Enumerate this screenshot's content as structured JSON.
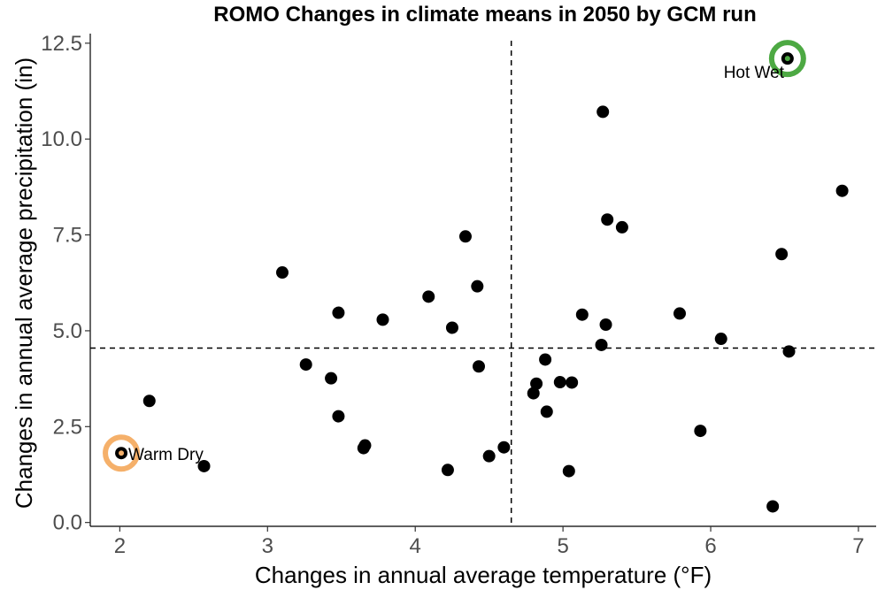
{
  "chart_data": {
    "type": "scatter",
    "title": "ROMO Changes in climate means in 2050 by GCM run",
    "xlabel": "Changes in annual average temperature (°F)",
    "ylabel": "Changes in annual average precipitation (in)",
    "xlim": [
      1.8,
      7.12
    ],
    "ylim": [
      -0.1,
      12.75
    ],
    "x_ticks": [
      2,
      3,
      4,
      5,
      6,
      7
    ],
    "x_tick_labels": [
      "2",
      "3",
      "4",
      "5",
      "6",
      "7"
    ],
    "y_ticks": [
      0,
      2.5,
      5,
      7.5,
      10,
      12.5
    ],
    "y_tick_labels": [
      "0.0",
      "2.5",
      "5.0",
      "7.5",
      "10.0",
      "12.5"
    ],
    "grid": false,
    "reference_lines": {
      "vertical_x": 4.65,
      "horizontal_y": 4.55
    },
    "points": [
      {
        "x": 2.01,
        "y": 1.81
      },
      {
        "x": 2.2,
        "y": 3.17
      },
      {
        "x": 2.57,
        "y": 1.47
      },
      {
        "x": 3.1,
        "y": 6.52
      },
      {
        "x": 3.26,
        "y": 4.12
      },
      {
        "x": 3.43,
        "y": 3.76
      },
      {
        "x": 3.48,
        "y": 5.47
      },
      {
        "x": 3.48,
        "y": 2.77
      },
      {
        "x": 3.65,
        "y": 1.94
      },
      {
        "x": 3.66,
        "y": 2.01
      },
      {
        "x": 3.78,
        "y": 5.29
      },
      {
        "x": 4.09,
        "y": 5.89
      },
      {
        "x": 4.22,
        "y": 1.37
      },
      {
        "x": 4.25,
        "y": 5.08
      },
      {
        "x": 4.34,
        "y": 7.46
      },
      {
        "x": 4.42,
        "y": 6.16
      },
      {
        "x": 4.43,
        "y": 4.07
      },
      {
        "x": 4.5,
        "y": 1.73
      },
      {
        "x": 4.6,
        "y": 1.96
      },
      {
        "x": 4.8,
        "y": 3.37
      },
      {
        "x": 4.82,
        "y": 3.62
      },
      {
        "x": 4.88,
        "y": 4.25
      },
      {
        "x": 4.89,
        "y": 2.89
      },
      {
        "x": 4.98,
        "y": 3.66
      },
      {
        "x": 5.04,
        "y": 1.34
      },
      {
        "x": 5.06,
        "y": 3.65
      },
      {
        "x": 5.13,
        "y": 5.42
      },
      {
        "x": 5.26,
        "y": 4.63
      },
      {
        "x": 5.27,
        "y": 10.71
      },
      {
        "x": 5.29,
        "y": 5.16
      },
      {
        "x": 5.3,
        "y": 7.9
      },
      {
        "x": 5.4,
        "y": 7.7
      },
      {
        "x": 5.79,
        "y": 5.45
      },
      {
        "x": 5.93,
        "y": 2.39
      },
      {
        "x": 6.07,
        "y": 4.79
      },
      {
        "x": 6.42,
        "y": 0.42
      },
      {
        "x": 6.48,
        "y": 7.0
      },
      {
        "x": 6.52,
        "y": 12.1
      },
      {
        "x": 6.53,
        "y": 4.46
      },
      {
        "x": 6.89,
        "y": 8.65
      }
    ],
    "highlights": [
      {
        "label": "Warm Dry",
        "x": 2.01,
        "y": 1.81,
        "color": "#F5B06A",
        "label_anchor": "right"
      },
      {
        "label": "Hot Wet",
        "x": 6.52,
        "y": 12.1,
        "color": "#4DA943",
        "label_anchor": "below-left"
      }
    ],
    "point_color": "#000000"
  }
}
